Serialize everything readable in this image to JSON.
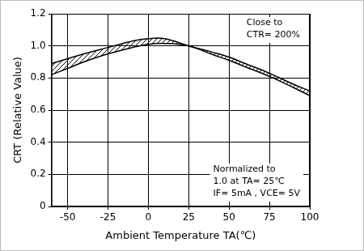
{
  "chart_data": {
    "type": "line",
    "x_label": "Ambient Temperature TA(℃)",
    "y_label": "CRT (Relative Value)",
    "annotations": [
      [
        "Close to",
        "CTR= 200%"
      ],
      [
        "Normalized to",
        "1.0 at TA= 25℃",
        "IF= 5mA , VCE= 5V"
      ]
    ],
    "x": [
      -60,
      -50,
      -40,
      -25,
      -10,
      0,
      10,
      25,
      40,
      50,
      60,
      75,
      90,
      100
    ],
    "series": [
      {
        "color": "#000000",
        "values": [
          0.89,
          0.92,
          0.95,
          0.99,
          1.03,
          1.045,
          1.045,
          1.0,
          0.96,
          0.93,
          0.89,
          0.83,
          0.76,
          0.72
        ]
      },
      {
        "color": "#000000",
        "values": [
          0.82,
          0.86,
          0.9,
          0.95,
          0.99,
          1.01,
          1.015,
          1.0,
          0.945,
          0.91,
          0.87,
          0.81,
          0.74,
          0.69
        ]
      }
    ],
    "xlim": [
      -60,
      100
    ],
    "xticks": [
      -50,
      -25,
      0,
      25,
      50,
      75,
      100
    ],
    "ylim": [
      0,
      1.2
    ],
    "yticks": [
      0,
      0.2,
      0.4,
      0.6,
      0.8,
      {
        "value": 1,
        "label": "1.0"
      },
      1.2
    ],
    "grid": true
  }
}
